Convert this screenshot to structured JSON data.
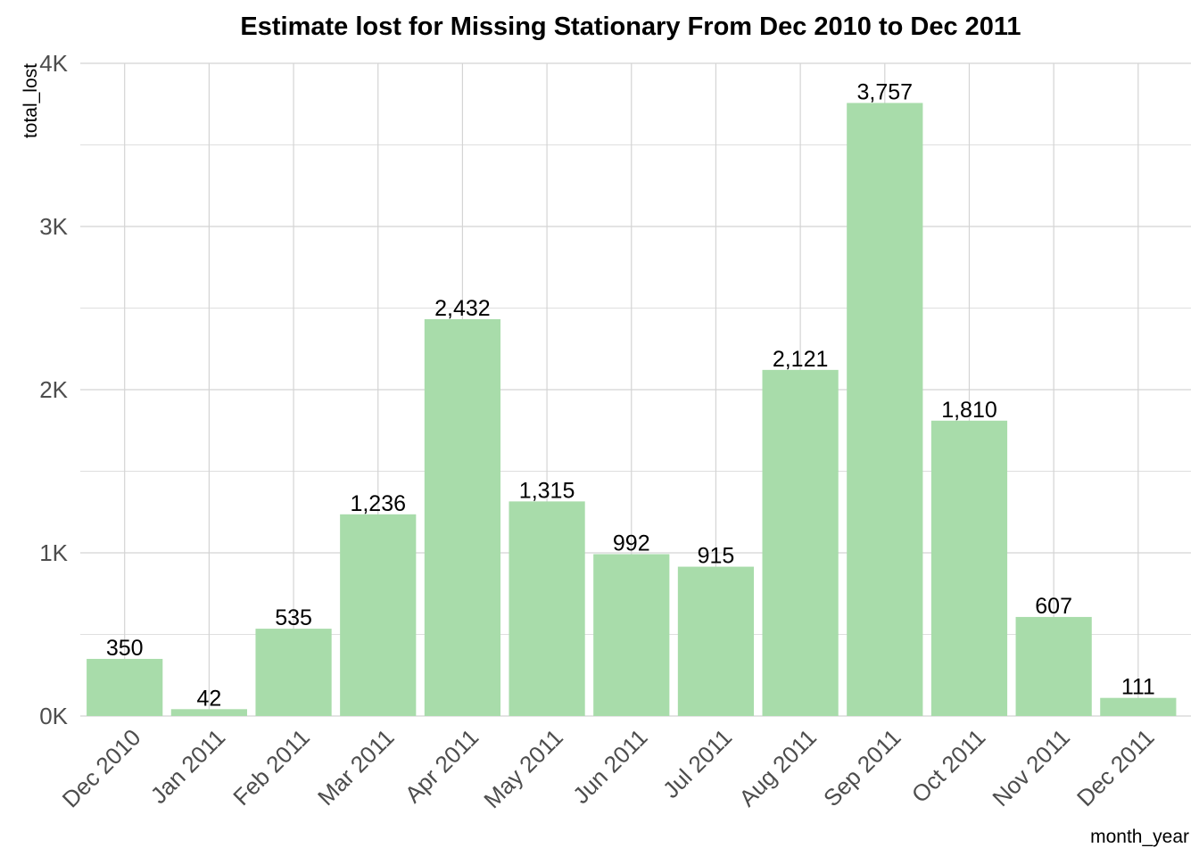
{
  "chart_data": {
    "type": "bar",
    "title": "Estimate lost for Missing Stationary From Dec 2010 to Dec 2011",
    "xlabel": "month_year",
    "ylabel": "total_lost",
    "categories": [
      "Dec 2010",
      "Jan 2011",
      "Feb 2011",
      "Mar 2011",
      "Apr 2011",
      "May 2011",
      "Jun 2011",
      "Jul 2011",
      "Aug 2011",
      "Sep 2011",
      "Oct 2011",
      "Nov 2011",
      "Dec 2011"
    ],
    "values": [
      350,
      42,
      535,
      1236,
      2432,
      1315,
      992,
      915,
      2121,
      3757,
      1810,
      607,
      111
    ],
    "value_labels": [
      "350",
      "42",
      "535",
      "1,236",
      "2,432",
      "1,315",
      "992",
      "915",
      "2,121",
      "3,757",
      "1,810",
      "607",
      "111"
    ],
    "ylim": [
      0,
      4000
    ],
    "y_ticks": [
      0,
      1000,
      2000,
      3000,
      4000
    ],
    "y_tick_labels": [
      "0K",
      "1K",
      "2K",
      "3K",
      "4K"
    ],
    "grid": true,
    "legend": "none",
    "colors": {
      "bar": "#a8dcaa",
      "grid": "#d4d4d4",
      "tick_text": "#4d4d4d"
    }
  }
}
